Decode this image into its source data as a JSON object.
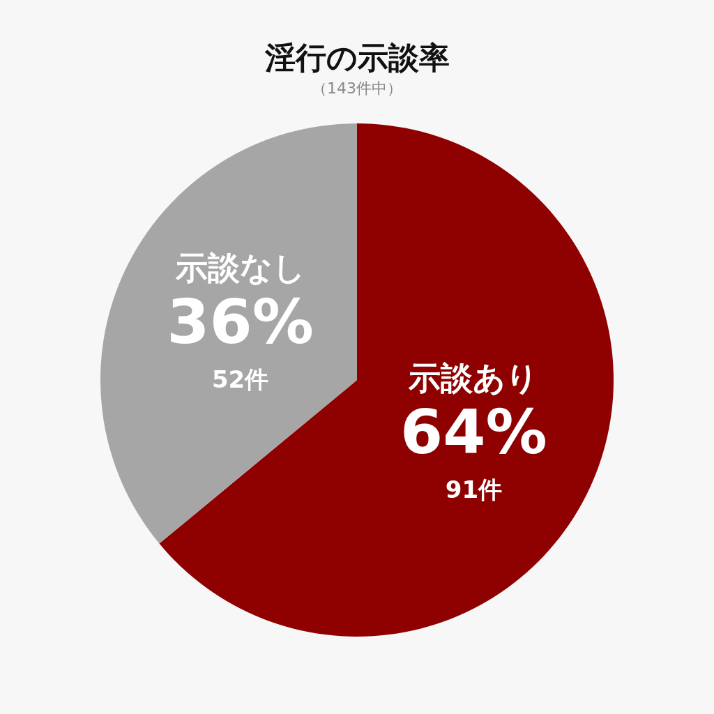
{
  "chart_data": {
    "type": "pie",
    "title": "淫行の示談率",
    "subtitle": "（143件中）",
    "categories": [
      "示談あり",
      "示談なし"
    ],
    "values": [
      64,
      36
    ],
    "colors": [
      "#8f0000",
      "#a6a6a6"
    ],
    "value_labels": [
      "64%",
      "36%"
    ],
    "annotations": [
      {
        "text": "91件",
        "x": "示談あり"
      },
      {
        "text": "52件",
        "x": "示談なし"
      }
    ],
    "legend": false
  }
}
